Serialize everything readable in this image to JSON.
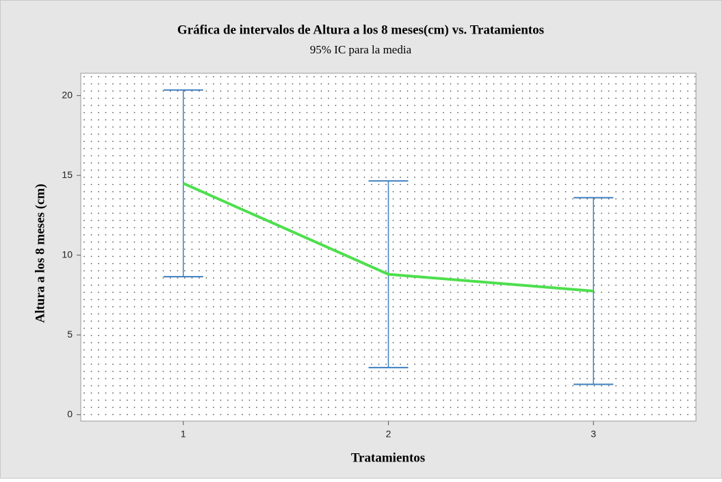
{
  "chart_data": {
    "type": "interval",
    "title": "Gráfica de intervalos de Altura a los 8 meses(cm) vs. Tratamientos",
    "subtitle": "95% IC para la media",
    "x_label": "Tratamientos",
    "y_label": "Altura a los 8 meses (cm)",
    "categories": [
      "1",
      "2",
      "3"
    ],
    "series": [
      {
        "color": "#4ddf4d",
        "values": [
          14.5,
          8.8,
          7.75
        ],
        "errors": [
          5.85,
          5.85,
          5.85
        ],
        "error_color": "#3d7fc0"
      }
    ],
    "ylim": [
      -0.4,
      21.4
    ],
    "yticks": [
      0,
      5,
      10,
      15,
      20
    ],
    "grid": true
  }
}
